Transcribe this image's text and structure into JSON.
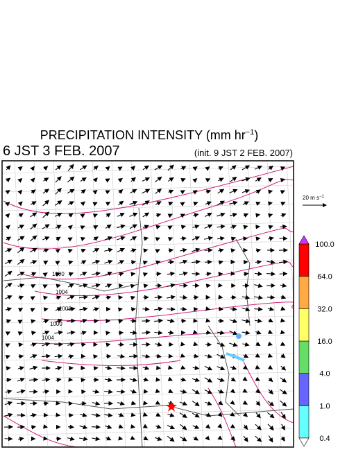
{
  "header": {
    "title": "PRECIPITATION INTENSITY (mm hr",
    "title_exponent": "−1",
    "title_close": ")",
    "valid_time": "6 JST 3 FEB. 2007",
    "init_time": "(init. 9 JST 2 FEB. 2007)"
  },
  "wind_scale": {
    "label": "20 m s",
    "exponent": "−1"
  },
  "colorbar": {
    "levels": [
      "0.4",
      "1.0",
      "4.0",
      "16.0",
      "32.0",
      "64.0",
      "100.0"
    ],
    "colors": [
      "#66ffff",
      "#6666ff",
      "#66dd66",
      "#ffff66",
      "#ffaa44",
      "#ff0000"
    ],
    "over_color": "#cc33ff",
    "under_color": "#ffffff"
  },
  "isobar_labels": [
    "1000",
    "1004",
    "1008",
    "1000",
    "1004"
  ]
}
